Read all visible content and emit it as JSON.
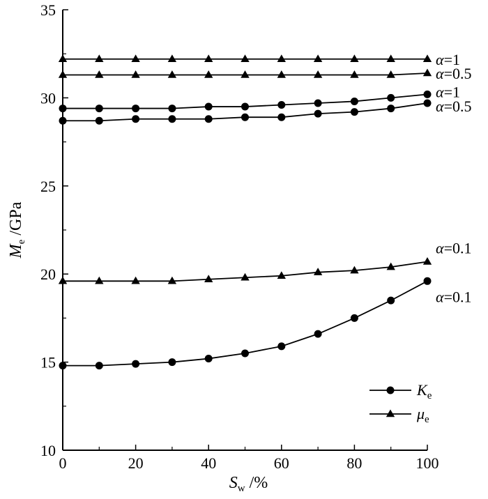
{
  "chart_data": {
    "type": "line",
    "x": [
      0,
      10,
      20,
      30,
      40,
      50,
      60,
      70,
      80,
      90,
      100
    ],
    "xlim": [
      0,
      100
    ],
    "ylim": [
      10,
      35
    ],
    "x_ticks": [
      0,
      20,
      40,
      60,
      80,
      100
    ],
    "y_ticks": [
      10,
      15,
      20,
      25,
      30,
      35
    ],
    "xlabel": {
      "main": "S",
      "sub": "w",
      "suffix": " /%"
    },
    "ylabel": {
      "main": "M",
      "sub": "e",
      "suffix": " /GPa"
    },
    "grid": false,
    "legend_position": "bottom-right",
    "legend": [
      {
        "main": "K",
        "sub": "e",
        "marker": "circle"
      },
      {
        "main": "μ",
        "sub": "e",
        "marker": "triangle"
      }
    ],
    "series": [
      {
        "marker": "triangle",
        "label": {
          "sym": "α",
          "rest": "=1"
        },
        "values": [
          32.2,
          32.2,
          32.2,
          32.2,
          32.2,
          32.2,
          32.2,
          32.2,
          32.2,
          32.2,
          32.2
        ]
      },
      {
        "marker": "triangle",
        "label": {
          "sym": "α",
          "rest": "=0.5"
        },
        "values": [
          31.3,
          31.3,
          31.3,
          31.3,
          31.3,
          31.3,
          31.3,
          31.3,
          31.3,
          31.3,
          31.4
        ]
      },
      {
        "marker": "circle",
        "label": {
          "sym": "α",
          "rest": "=1"
        },
        "values": [
          29.4,
          29.4,
          29.4,
          29.4,
          29.5,
          29.5,
          29.6,
          29.7,
          29.8,
          30.0,
          30.2
        ]
      },
      {
        "marker": "circle",
        "label": {
          "sym": "α",
          "rest": "=0.5"
        },
        "values": [
          28.7,
          28.7,
          28.8,
          28.8,
          28.8,
          28.9,
          28.9,
          29.1,
          29.2,
          29.4,
          29.7
        ]
      },
      {
        "marker": "triangle",
        "label": {
          "sym": "α",
          "rest": "=0.1"
        },
        "values": [
          19.6,
          19.6,
          19.6,
          19.6,
          19.7,
          19.8,
          19.9,
          20.1,
          20.2,
          20.4,
          20.7
        ]
      },
      {
        "marker": "circle",
        "label": {
          "sym": "α",
          "rest": "=0.1"
        },
        "values": [
          14.8,
          14.8,
          14.9,
          15.0,
          15.2,
          15.5,
          15.9,
          16.6,
          17.5,
          18.5,
          19.6
        ]
      }
    ]
  }
}
